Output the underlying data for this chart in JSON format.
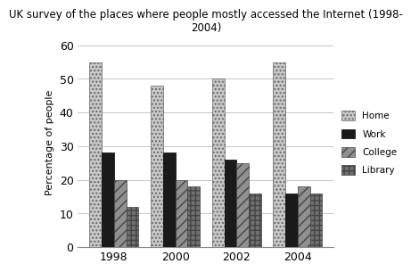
{
  "title": "UK survey of the places where people mostly accessed the Internet (1998-\n2004)",
  "years": [
    "1998",
    "2000",
    "2002",
    "2004"
  ],
  "categories": [
    "Home",
    "Work",
    "College",
    "Library"
  ],
  "values": {
    "Home": [
      55,
      48,
      50,
      55
    ],
    "Work": [
      28,
      28,
      26,
      16
    ],
    "College": [
      20,
      20,
      25,
      18
    ],
    "Library": [
      12,
      18,
      16,
      16
    ]
  },
  "ylabel": "Percentage of people",
  "ylim": [
    0,
    62
  ],
  "yticks": [
    0,
    10,
    20,
    30,
    40,
    50,
    60
  ],
  "bar_width": 0.2,
  "background_color": "#ffffff",
  "colors": [
    "#c8c8c8",
    "#1a1a1a",
    "#909090",
    "#707070"
  ],
  "edge_colors": [
    "#666666",
    "#000000",
    "#444444",
    "#444444"
  ],
  "hatches": [
    "....",
    "",
    "///",
    "+++"
  ],
  "legend_hatches": [
    "....",
    "",
    "///",
    "+++"
  ],
  "legend_colors": [
    "#c8c8c8",
    "#1a1a1a",
    "#909090",
    "#707070"
  ]
}
